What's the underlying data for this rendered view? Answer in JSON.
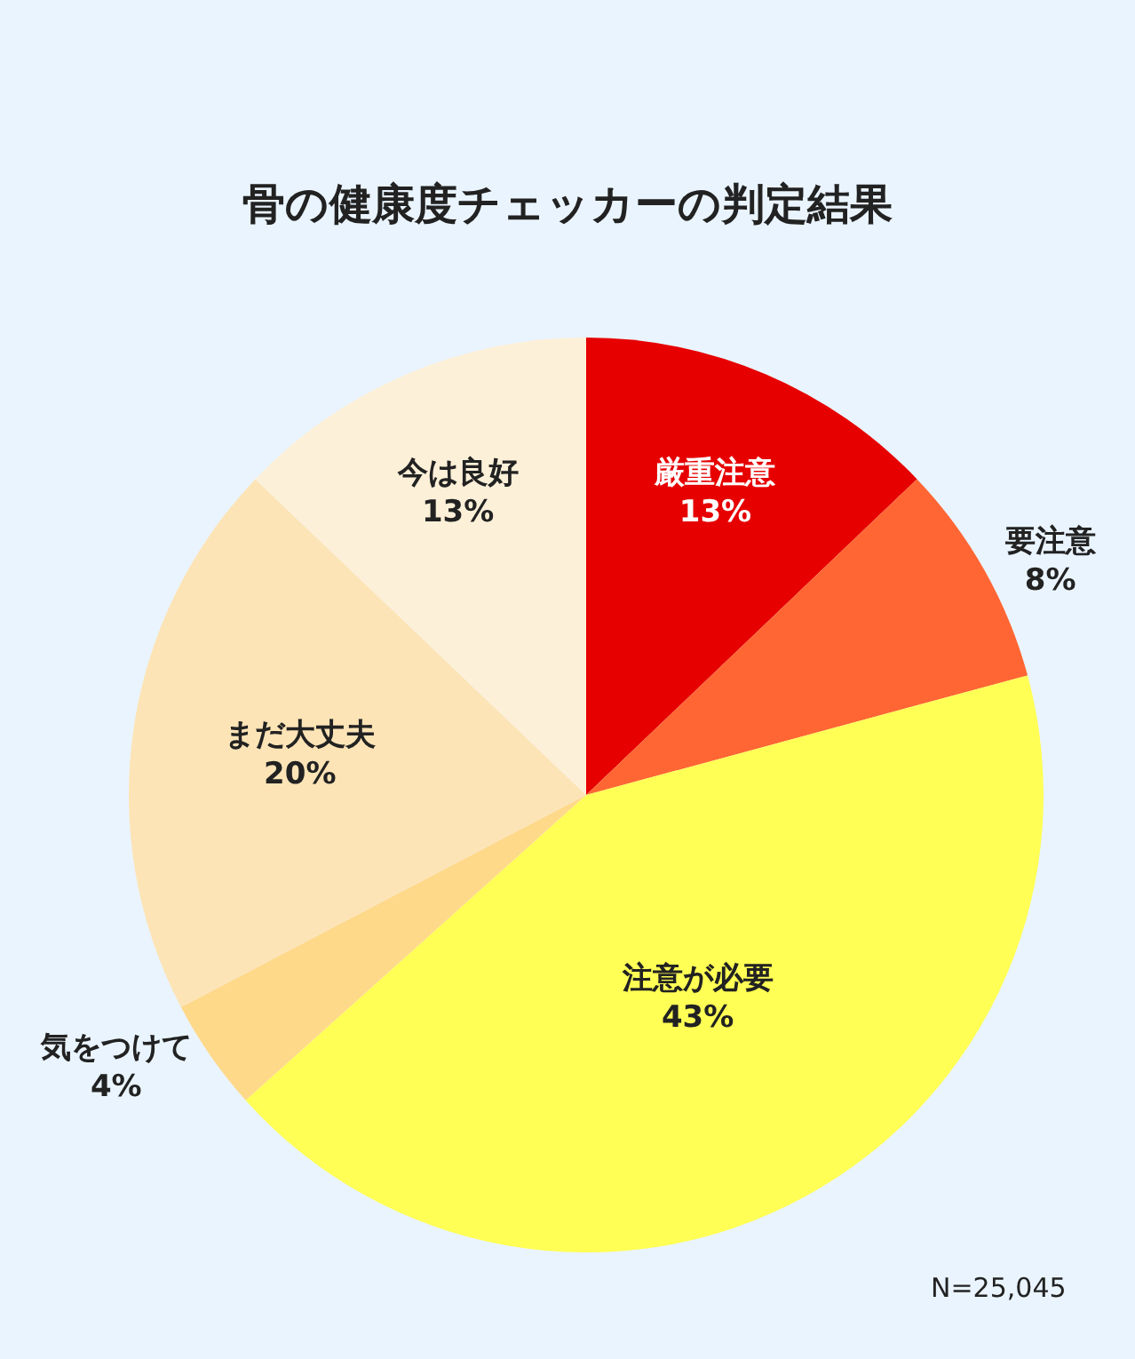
{
  "chart_data": {
    "type": "pie",
    "title": "骨の健康度チェッカーの判定結果",
    "categories": [
      "厳重注意",
      "要注意",
      "注意が必要",
      "気をつけて",
      "まだ大丈夫",
      "今は良好"
    ],
    "values": [
      13,
      8,
      43,
      4,
      20,
      13
    ],
    "value_labels": [
      "13%",
      "8%",
      "43%",
      "4%",
      "20%",
      "13%"
    ],
    "colors": [
      "#e60000",
      "#ff6633",
      "#ffff55",
      "#ffd98a",
      "#fde4b6",
      "#fdf0d8"
    ],
    "annotations": [
      "N=25,045"
    ],
    "legend": false
  }
}
